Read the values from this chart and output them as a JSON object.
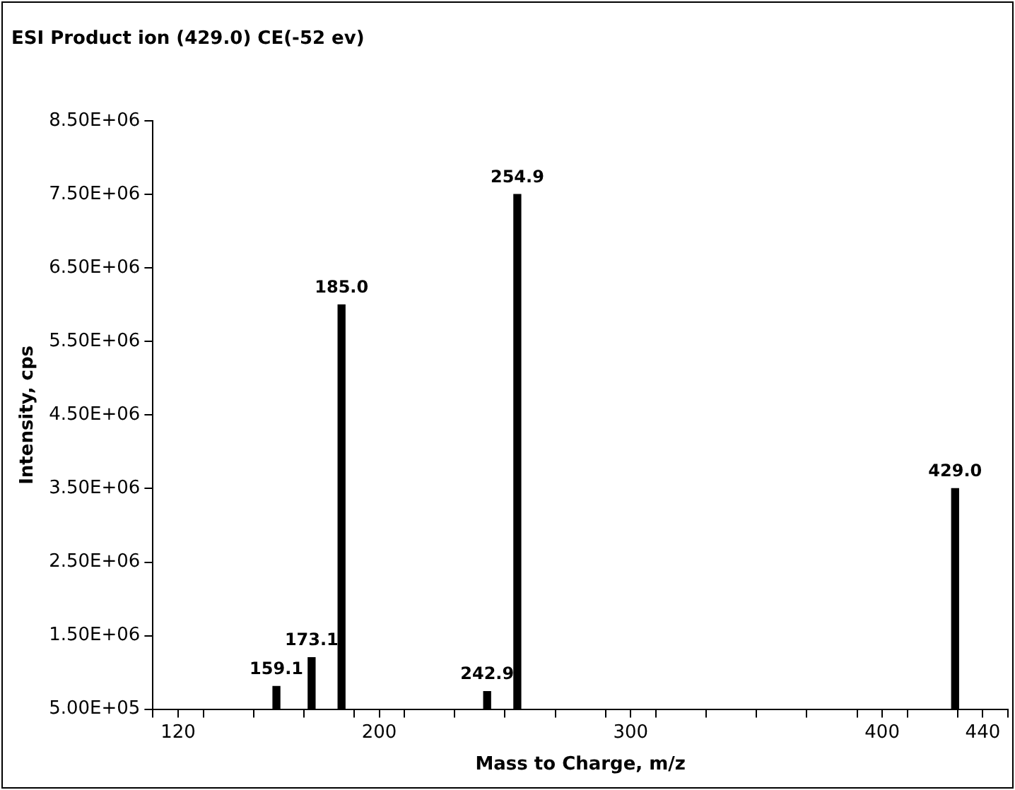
{
  "chart_data": {
    "type": "bar",
    "title": "ESI Product ion (429.0) CE(-52 ev)",
    "xlabel": "Mass to Charge, m/z",
    "ylabel": "Intensity, cps",
    "x": [
      159.1,
      173.1,
      185.0,
      242.9,
      254.9,
      429.0
    ],
    "values": [
      810000,
      1200000,
      6000000,
      740000,
      7500000,
      3500000
    ],
    "color": "#000000",
    "xlim": [
      110,
      450
    ],
    "xticks": [
      {
        "value": 110,
        "label": null
      },
      {
        "value": 120,
        "label": "120"
      },
      {
        "value": 130,
        "label": null
      },
      {
        "value": 150,
        "label": null
      },
      {
        "value": 170,
        "label": null
      },
      {
        "value": 190,
        "label": null
      },
      {
        "value": 200,
        "label": "200"
      },
      {
        "value": 210,
        "label": null
      },
      {
        "value": 230,
        "label": null
      },
      {
        "value": 250,
        "label": null
      },
      {
        "value": 270,
        "label": null
      },
      {
        "value": 290,
        "label": null
      },
      {
        "value": 300,
        "label": "300"
      },
      {
        "value": 310,
        "label": null
      },
      {
        "value": 330,
        "label": null
      },
      {
        "value": 350,
        "label": null
      },
      {
        "value": 370,
        "label": null
      },
      {
        "value": 390,
        "label": null
      },
      {
        "value": 400,
        "label": "400"
      },
      {
        "value": 410,
        "label": null
      },
      {
        "value": 430,
        "label": null
      },
      {
        "value": 440,
        "label": "440"
      },
      {
        "value": 450,
        "label": null
      }
    ],
    "ylim": [
      500000,
      8500000
    ],
    "yticks": [
      {
        "value": 500000,
        "label": "5.00E+05"
      },
      {
        "value": 1500000,
        "label": "1.50E+06"
      },
      {
        "value": 2500000,
        "label": "2.50E+06"
      },
      {
        "value": 3500000,
        "label": "3.50E+06"
      },
      {
        "value": 4500000,
        "label": "4.50E+06"
      },
      {
        "value": 5500000,
        "label": "5.50E+06"
      },
      {
        "value": 6500000,
        "label": "6.50E+06"
      },
      {
        "value": 7500000,
        "label": "7.50E+06"
      },
      {
        "value": 8500000,
        "label": "8.50E+06"
      }
    ],
    "annotations": [
      {
        "text": "159.1",
        "x": 159.1,
        "y": 810000
      },
      {
        "text": "173.1",
        "x": 173.1,
        "y": 1200000
      },
      {
        "text": "185.0",
        "x": 185.0,
        "y": 6000000
      },
      {
        "text": "242.9",
        "x": 242.9,
        "y": 740000
      },
      {
        "text": "254.9",
        "x": 254.9,
        "y": 7500000
      },
      {
        "text": "429.0",
        "x": 429.0,
        "y": 3500000
      }
    ],
    "grid": false,
    "legend": false
  }
}
